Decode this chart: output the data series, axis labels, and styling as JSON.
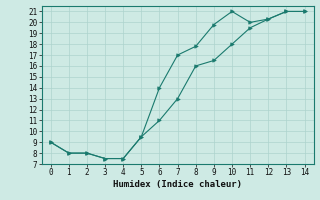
{
  "xlabel": "Humidex (Indice chaleur)",
  "bg_color": "#ceeae4",
  "line_color": "#1a7a6e",
  "grid_color": "#aed4ce",
  "line1_x": [
    0,
    1,
    2,
    3,
    4,
    5,
    6,
    7,
    8,
    9,
    10,
    11,
    12,
    13,
    14
  ],
  "line1_y": [
    9,
    8,
    8,
    7.5,
    7.5,
    9.5,
    14,
    17,
    17.8,
    19.8,
    21,
    20,
    20.3,
    21,
    21
  ],
  "line2_x": [
    0,
    1,
    2,
    3,
    4,
    5,
    6,
    7,
    8,
    9,
    10,
    11,
    12,
    13,
    14
  ],
  "line2_y": [
    9,
    8,
    8,
    7.5,
    7.5,
    9.5,
    11,
    13,
    16,
    16.5,
    18,
    19.5,
    20.3,
    21,
    21
  ],
  "xlim": [
    -0.5,
    14.5
  ],
  "ylim": [
    7,
    21.5
  ],
  "yticks": [
    7,
    8,
    9,
    10,
    11,
    12,
    13,
    14,
    15,
    16,
    17,
    18,
    19,
    20,
    21
  ],
  "xticks": [
    0,
    1,
    2,
    3,
    4,
    5,
    6,
    7,
    8,
    9,
    10,
    11,
    12,
    13,
    14
  ],
  "tick_fontsize": 5.5,
  "xlabel_fontsize": 6.5
}
